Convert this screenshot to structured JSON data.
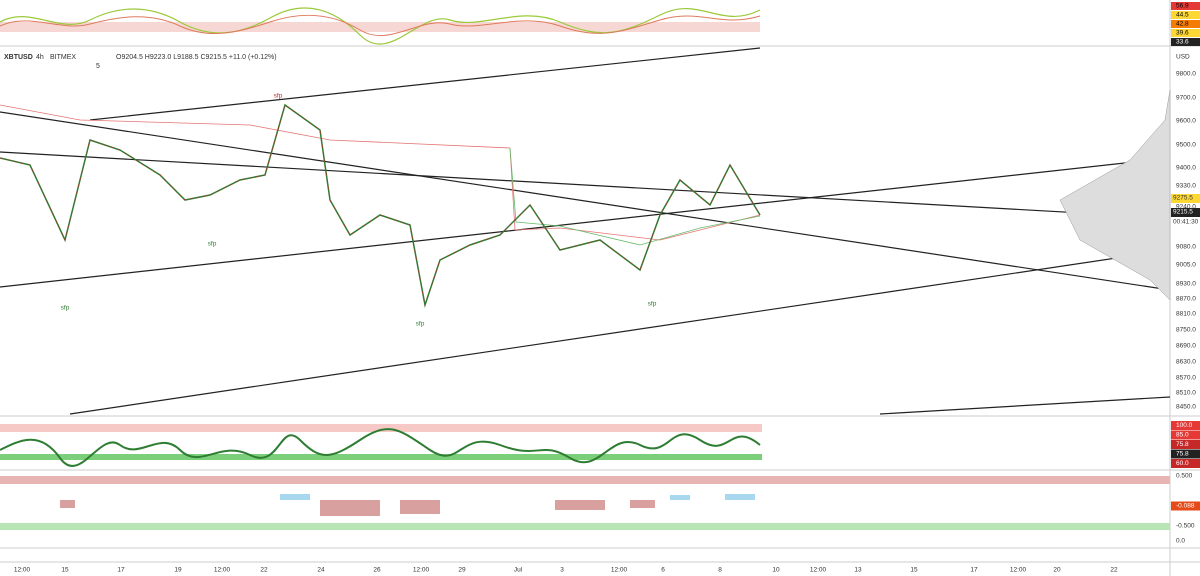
{
  "header": {
    "symbol": "XBTUSD",
    "interval": "4h",
    "exchange": "BITMEX",
    "ohlc": "O9204.5 H9223.0 L9188.5 C9215.5 +11.0 (+0.12%)",
    "badge": "5"
  },
  "price_axis": {
    "unit": "USD",
    "labels": [
      "9800.0",
      "9700.0",
      "9600.0",
      "9500.0",
      "9400.0",
      "9330.0",
      "9240.0",
      "9080.0",
      "9005.0",
      "8930.0",
      "8870.0",
      "8810.0",
      "8750.0",
      "8690.0",
      "8630.0",
      "8570.0",
      "8510.0",
      "8450.0"
    ],
    "last_price": "9275.5",
    "close": "9215.5",
    "countdown": "00:41:30"
  },
  "time_axis": [
    "12:00",
    "15",
    "17",
    "19",
    "12:00",
    "22",
    "24",
    "26",
    "12:00",
    "29",
    "Jul",
    "3",
    "12:00",
    "6",
    "8",
    "10",
    "12:00",
    "13",
    "15",
    "17",
    "12:00",
    "20",
    "22"
  ],
  "annotations": [
    "sfp",
    "sfp",
    "sfp",
    "sfp",
    "sfp"
  ],
  "top_indicator": [
    "56.9",
    "44.5",
    "42.8",
    "39.6",
    "33.6"
  ],
  "oscillator": [
    "100.0",
    "85.0",
    "75.8",
    "75.8",
    "60.0"
  ],
  "histogram": [
    "0.500",
    "-0.088",
    "-0.500",
    "0.0"
  ]
}
